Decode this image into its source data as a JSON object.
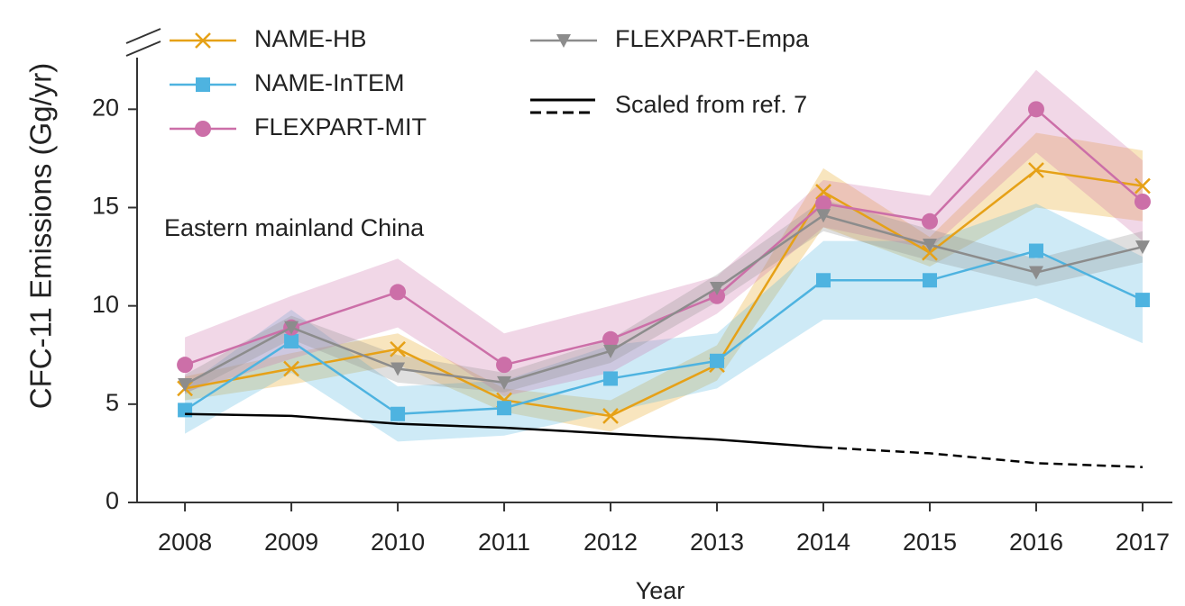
{
  "chart_data": {
    "type": "line",
    "x_label": "Year",
    "y_label": "CFC-11 Emissions (Gg/yr)",
    "annotation": "Eastern mainland China",
    "x": [
      2008,
      2009,
      2010,
      2011,
      2012,
      2013,
      2014,
      2015,
      2016,
      2017
    ],
    "xlim": [
      2007.55,
      2017.28
    ],
    "xticks": [
      2008,
      2009,
      2010,
      2011,
      2012,
      2013,
      2014,
      2015,
      2016,
      2017
    ],
    "ylim": [
      0,
      24
    ],
    "yticks": [
      0,
      5,
      10,
      15,
      20
    ],
    "series": [
      {
        "name": "NAME-HB",
        "color": "#e6a117",
        "marker": "x",
        "values": [
          5.8,
          6.8,
          7.8,
          5.2,
          4.4,
          7.0,
          15.8,
          12.7,
          16.9,
          16.1
        ],
        "lower": [
          5.2,
          6.0,
          7.0,
          4.6,
          3.6,
          6.2,
          14.0,
          12.0,
          15.0,
          14.3
        ],
        "upper": [
          6.4,
          7.6,
          8.6,
          5.8,
          5.2,
          8.0,
          17.0,
          13.5,
          18.8,
          17.9
        ]
      },
      {
        "name": "NAME-InTEM",
        "color": "#4eb3e0",
        "marker": "square",
        "values": [
          4.7,
          8.2,
          4.5,
          4.8,
          6.3,
          7.2,
          11.3,
          11.3,
          12.8,
          10.3
        ],
        "lower": [
          3.5,
          6.6,
          3.1,
          3.4,
          4.6,
          5.8,
          9.3,
          9.3,
          10.4,
          8.1
        ],
        "upper": [
          5.9,
          9.8,
          5.9,
          6.2,
          8.0,
          8.6,
          13.3,
          13.3,
          15.2,
          12.5
        ]
      },
      {
        "name": "FLEXPART-MIT",
        "color": "#cc6fa8",
        "marker": "circle",
        "values": [
          7.0,
          8.9,
          10.7,
          7.0,
          8.3,
          10.5,
          15.2,
          14.3,
          20.0,
          15.3
        ],
        "lower": [
          5.6,
          7.3,
          8.9,
          5.4,
          6.6,
          9.6,
          14.0,
          12.9,
          17.8,
          13.3
        ],
        "upper": [
          8.4,
          10.5,
          12.4,
          8.6,
          10.0,
          11.5,
          16.4,
          15.6,
          22.0,
          17.4
        ]
      },
      {
        "name": "FLEXPART-Empa",
        "color": "#8c8c8c",
        "marker": "triangle",
        "values": [
          6.0,
          8.9,
          6.8,
          6.1,
          7.7,
          10.9,
          14.6,
          13.1,
          11.7,
          13.0
        ],
        "lower": [
          5.5,
          8.3,
          6.1,
          5.6,
          7.1,
          10.2,
          13.8,
          12.3,
          11.0,
          12.2
        ],
        "upper": [
          6.5,
          9.5,
          7.5,
          6.6,
          8.3,
          11.6,
          15.4,
          13.9,
          12.4,
          13.8
        ]
      },
      {
        "name": "Scaled from ref. 7",
        "color": "#000000",
        "marker": "none",
        "values": [
          4.5,
          4.4,
          4.0,
          3.8,
          3.5,
          3.2,
          2.8,
          null,
          null,
          null
        ],
        "projected_values": [
          null,
          null,
          null,
          null,
          null,
          null,
          2.8,
          2.5,
          2.0,
          1.8
        ]
      }
    ]
  }
}
